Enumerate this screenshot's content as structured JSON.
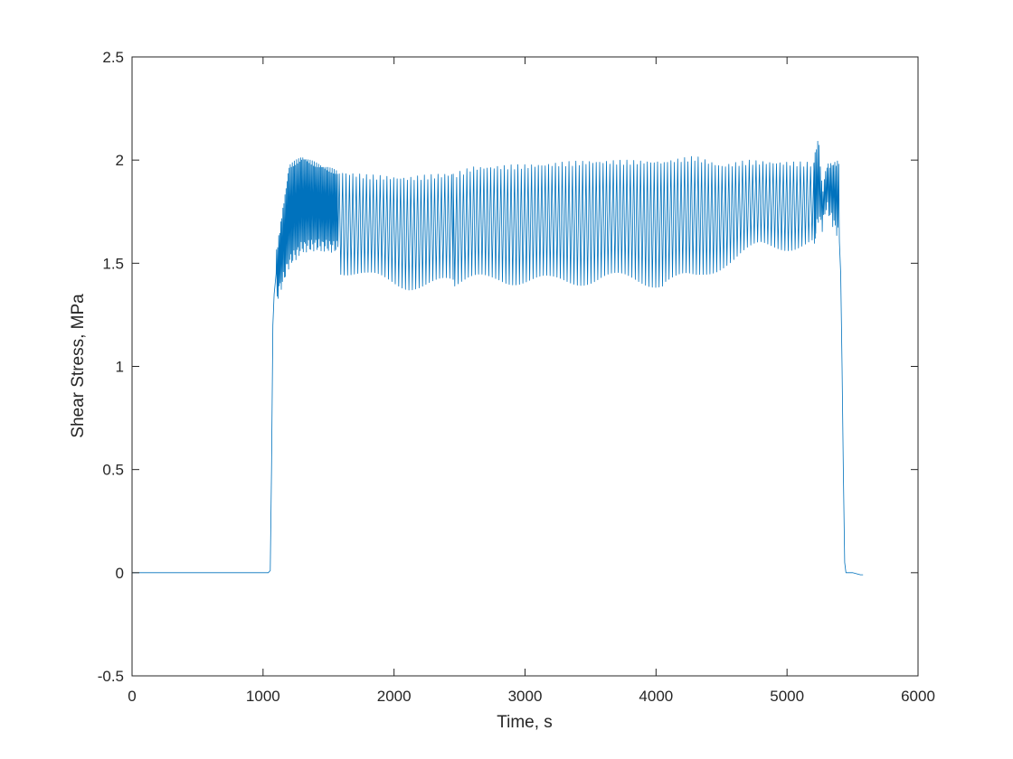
{
  "chart_data": {
    "type": "line",
    "title": "",
    "xlabel": "Time, s",
    "ylabel": "Shear Stress, MPa",
    "xlim": [
      0,
      6000
    ],
    "ylim": [
      -0.5,
      2.5
    ],
    "xticks": [
      0,
      1000,
      2000,
      3000,
      4000,
      5000,
      6000
    ],
    "xtick_labels": [
      "0",
      "1000",
      "2000",
      "3000",
      "4000",
      "5000",
      "6000"
    ],
    "yticks": [
      -0.5,
      0,
      0.5,
      1,
      1.5,
      2,
      2.5
    ],
    "ytick_labels": [
      "-0.5",
      "0",
      "0.5",
      "1",
      "1.5",
      "2",
      "2.5"
    ],
    "grid": false,
    "legend": "none",
    "line_color": "#0072BD",
    "series": [
      {
        "x": [
          0,
          500,
          1000,
          1040,
          1055,
          1065,
          1075,
          1085,
          1100,
          1120,
          1150,
          1200,
          1250,
          1300,
          1350,
          1400,
          1450,
          1500,
          1540,
          1570
        ],
        "y": [
          0,
          0,
          0,
          0,
          0.01,
          0.5,
          1.2,
          1.35,
          1.45,
          1.55,
          1.75,
          1.95,
          2.02,
          2.02,
          2.0,
          1.98,
          1.97,
          1.96,
          1.95,
          1.94
        ],
        "note_segment": "ramp"
      }
    ],
    "oscillation": {
      "segments": [
        {
          "x_start": 1100,
          "x_end": 1570,
          "period": 8,
          "upper": [
            [
              1100,
              1.55
            ],
            [
              1200,
              1.98
            ],
            [
              1300,
              2.02
            ],
            [
              1400,
              1.99
            ],
            [
              1570,
              1.95
            ]
          ],
          "lower": [
            [
              1100,
              1.3
            ],
            [
              1200,
              1.48
            ],
            [
              1300,
              1.55
            ],
            [
              1400,
              1.56
            ],
            [
              1570,
              1.55
            ]
          ]
        },
        {
          "x_start": 1570,
          "x_end": 2440,
          "period": 26,
          "upper": [
            [
              1570,
              1.95
            ],
            [
              1800,
              1.93
            ],
            [
              2100,
              1.92
            ],
            [
              2440,
              1.94
            ]
          ],
          "lower": [
            [
              1570,
              1.45
            ],
            [
              1800,
              1.4
            ],
            [
              2100,
              1.37
            ],
            [
              2440,
              1.37
            ]
          ]
        },
        {
          "x_start": 2440,
          "x_end": 4050,
          "period": 26,
          "upper": [
            [
              2440,
              1.93
            ],
            [
              2600,
              1.97
            ],
            [
              3000,
              1.98
            ],
            [
              3500,
              2.0
            ],
            [
              4050,
              2.0
            ]
          ],
          "lower": [
            [
              2440,
              1.37
            ],
            [
              2800,
              1.4
            ],
            [
              3200,
              1.38
            ],
            [
              3600,
              1.4
            ],
            [
              4050,
              1.38
            ]
          ]
        },
        {
          "x_start": 4050,
          "x_end": 5200,
          "period": 26,
          "upper": [
            [
              4050,
              2.0
            ],
            [
              4300,
              2.02
            ],
            [
              4500,
              1.98
            ],
            [
              4700,
              2.0
            ],
            [
              5200,
              1.99
            ]
          ],
          "lower": [
            [
              4050,
              1.38
            ],
            [
              4300,
              1.4
            ],
            [
              4500,
              1.47
            ],
            [
              4800,
              1.55
            ],
            [
              5200,
              1.57
            ]
          ]
        },
        {
          "x_start": 5200,
          "x_end": 5400,
          "period": 10,
          "upper": [
            [
              5200,
              1.99
            ],
            [
              5240,
              2.12
            ],
            [
              5270,
              1.85
            ],
            [
              5300,
              1.98
            ],
            [
              5400,
              2.0
            ]
          ],
          "lower": [
            [
              5200,
              1.55
            ],
            [
              5240,
              1.7
            ],
            [
              5270,
              1.65
            ],
            [
              5300,
              1.75
            ],
            [
              5400,
              1.6
            ]
          ]
        }
      ]
    },
    "tail": {
      "x": [
        5400,
        5410,
        5420,
        5430,
        5440,
        5450,
        5500,
        5560,
        5580
      ],
      "y": [
        1.6,
        1.45,
        1.0,
        0.5,
        0.05,
        0.0,
        0.0,
        -0.01,
        -0.01
      ]
    }
  }
}
